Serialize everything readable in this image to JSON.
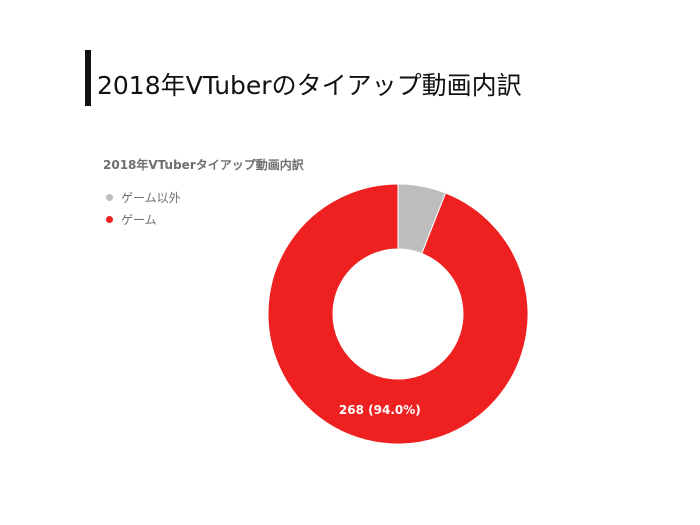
{
  "slide": {
    "title": "2018年VTuberのタイアップ動画内訳"
  },
  "chart_data": {
    "type": "pie",
    "style": "donut",
    "title": "2018年VTuberタイアップ動画内訳",
    "legend_position": "top-left",
    "slices": [
      {
        "name": "ゲーム以外",
        "value": 17,
        "percent": 6.0,
        "color": "#bdbdbd",
        "label": ""
      },
      {
        "name": "ゲーム",
        "value": 268,
        "percent": 94.0,
        "color": "#ee2020",
        "label": "268 (94.0%)"
      }
    ]
  }
}
